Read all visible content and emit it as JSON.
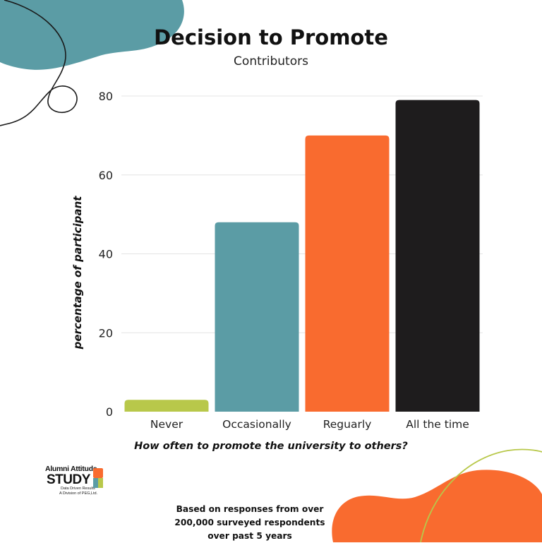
{
  "colors": {
    "teal": "#5b9ca5",
    "orange": "#f96b2f",
    "black": "#1e1c1d",
    "lime": "#b8c84a",
    "grid": "#e4e4e4"
  },
  "logo": {
    "line1": "Alumni Attitude",
    "line2": "STUDY",
    "tagline": "Data Driven Results",
    "division": "A Division of PEG,Ltd."
  },
  "footnote": {
    "lines": [
      "Based on responses from over",
      "200,000 surveyed respondents",
      "over past 5 years"
    ]
  },
  "chart_data": {
    "type": "bar",
    "title": "Decision to Promote",
    "subtitle": "Contributors",
    "xlabel": "How often to promote the university to others?",
    "ylabel": "percentage of participant",
    "categories": [
      "Never",
      "Occasionally",
      "Reguarly",
      "All the time"
    ],
    "values": [
      3,
      48,
      70,
      79
    ],
    "bar_colors": [
      "#b8c84a",
      "#5b9ca5",
      "#f96b2f",
      "#1e1c1d"
    ],
    "ylim": [
      0,
      80
    ],
    "yticks": [
      "0",
      "20",
      "40",
      "60",
      "80"
    ],
    "grid": true
  }
}
